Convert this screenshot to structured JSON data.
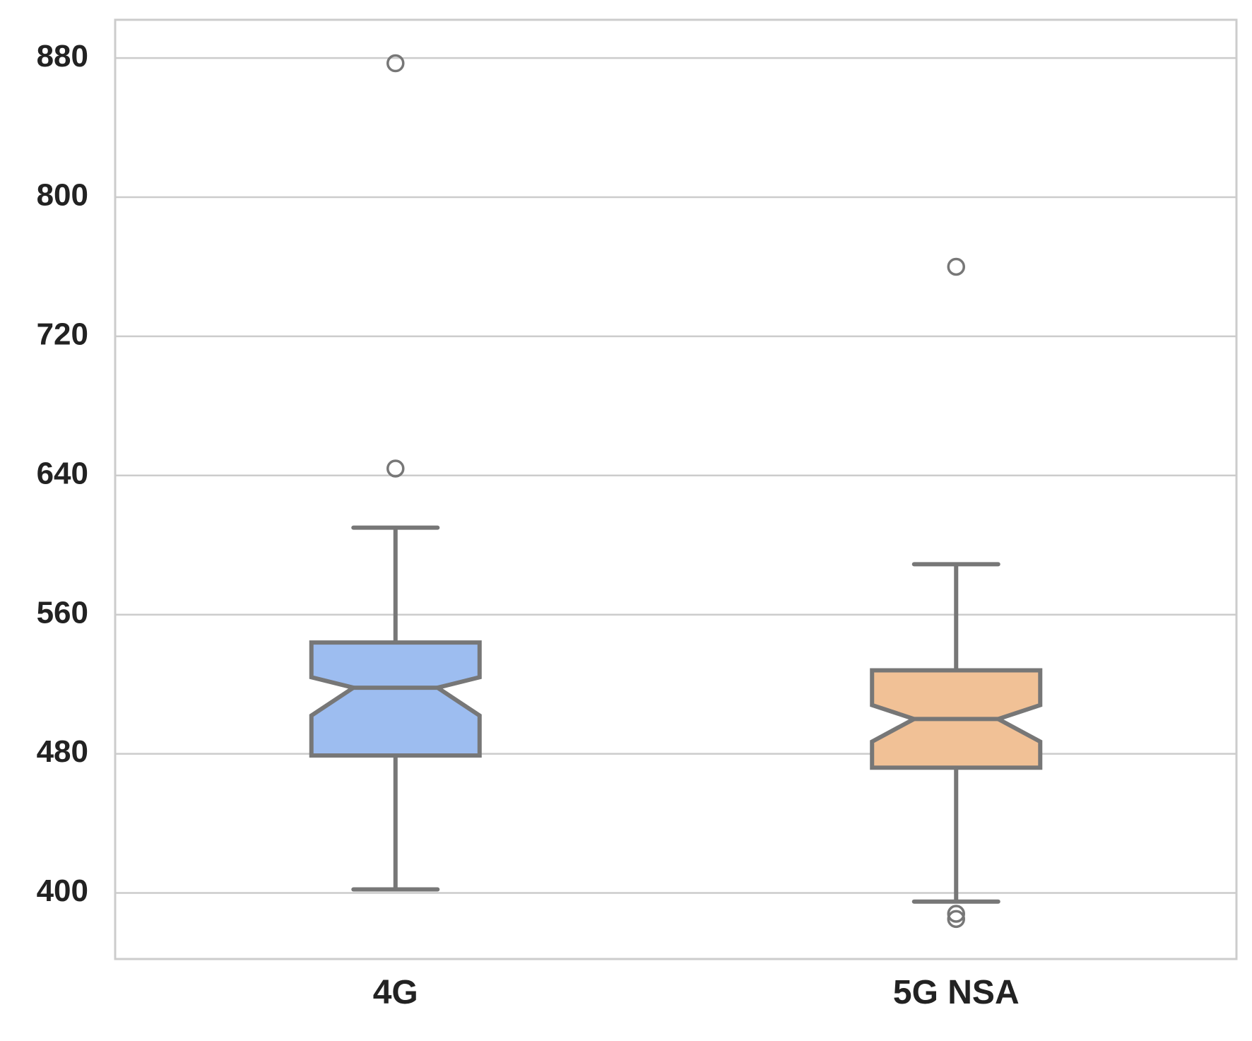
{
  "chart_data": {
    "type": "box",
    "notched": true,
    "categories": [
      "4G",
      "5G NSA"
    ],
    "boxes": [
      {
        "category": "4G",
        "whisker_low": 402,
        "q1": 479,
        "median": 518,
        "q3": 544,
        "whisker_high": 610,
        "notch_low": 502,
        "notch_high": 524,
        "outliers": [
          877,
          644
        ],
        "color": "#9dbdf0"
      },
      {
        "category": "5G NSA",
        "whisker_low": 395,
        "q1": 472,
        "median": 500,
        "q3": 528,
        "whisker_high": 589,
        "notch_low": 487,
        "notch_high": 508,
        "outliers": [
          760,
          388,
          385
        ],
        "color": "#f1c196"
      }
    ],
    "yticks": [
      400,
      480,
      560,
      640,
      720,
      800,
      880
    ],
    "ylim": [
      362,
      902
    ],
    "grid": true,
    "xlabel": "",
    "ylabel": "",
    "title": "",
    "edge_color": "#777777",
    "grid_color": "#cccccc"
  }
}
